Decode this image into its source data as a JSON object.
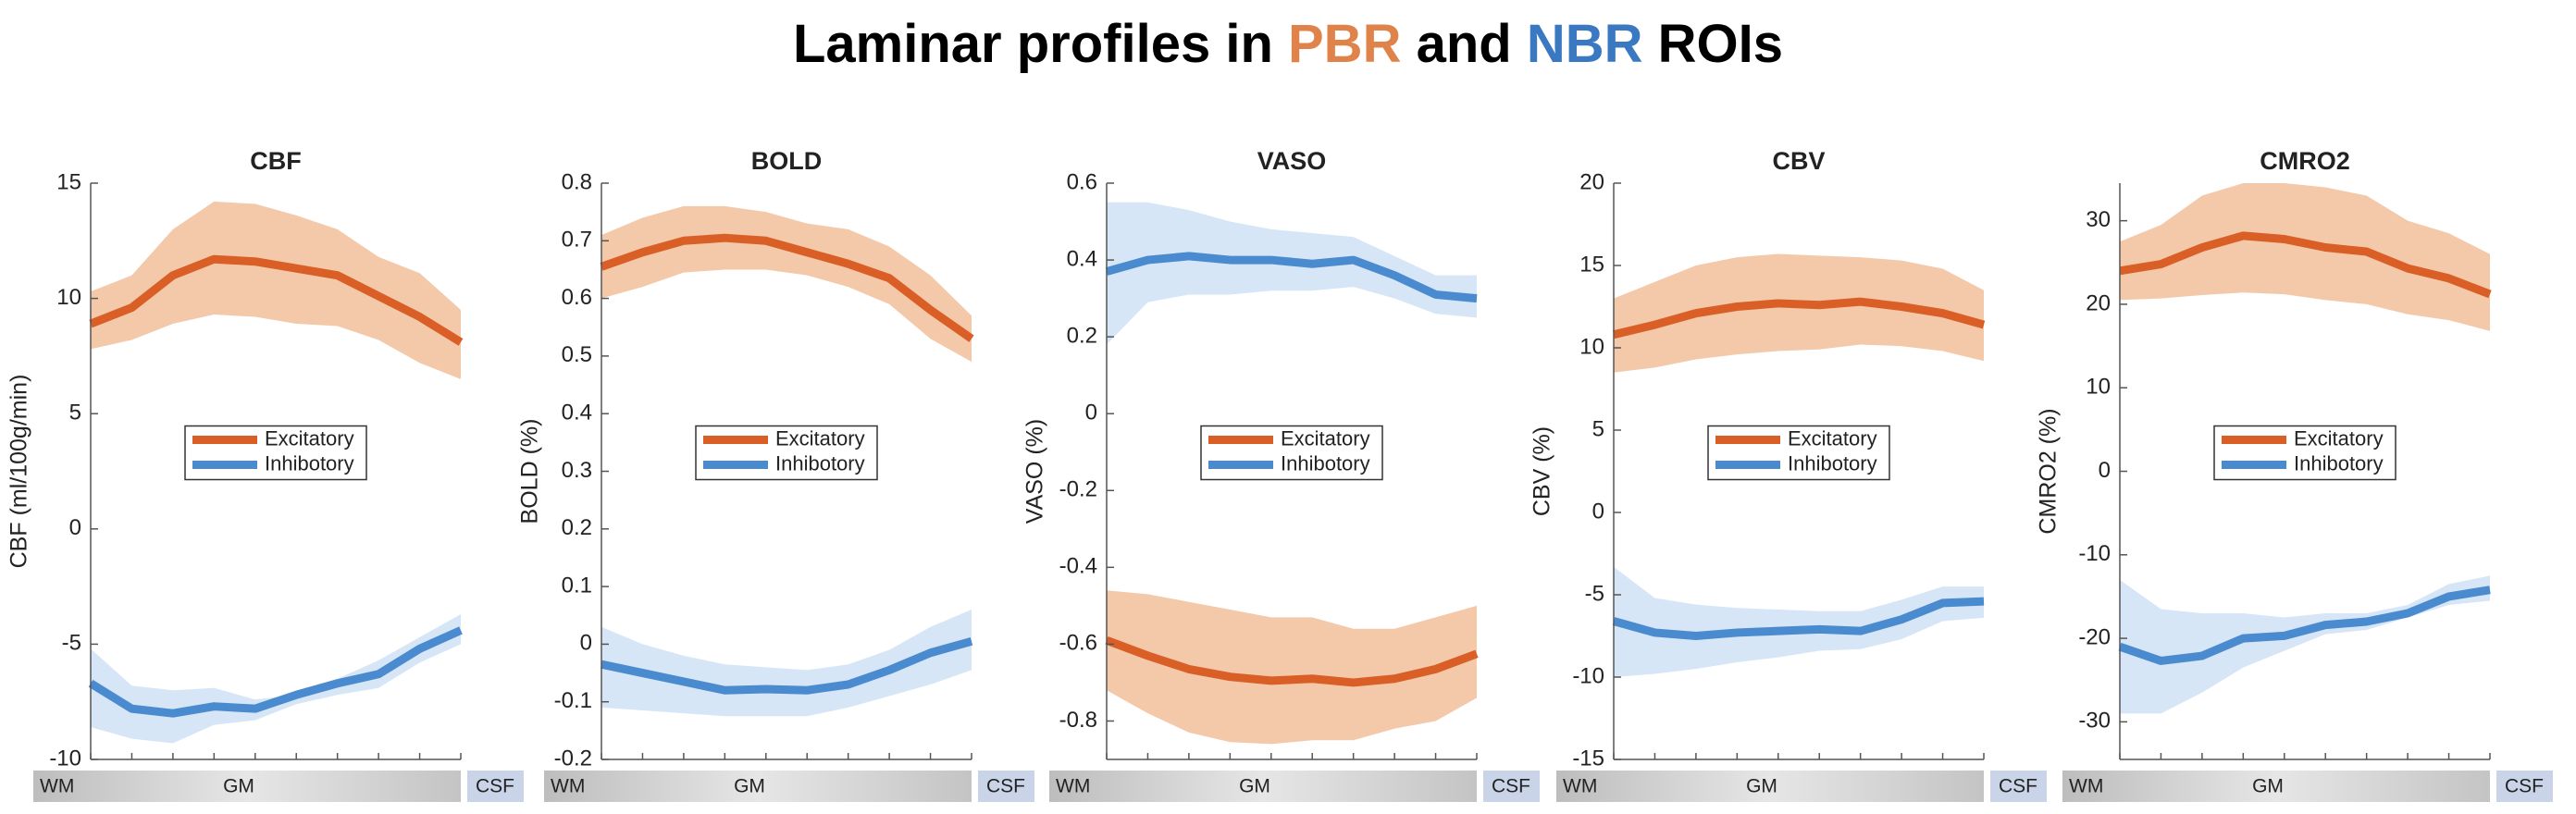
{
  "title": [
    "Laminar profiles in",
    "PBR",
    "and",
    "NBR",
    "ROIs"
  ],
  "title_colors": [
    null,
    "#e0834a",
    null,
    "#3a78c2",
    null
  ],
  "chart_data": [
    {
      "type": "line",
      "title": "CBF",
      "ylabel": "CBF (ml/100g/min)",
      "categories": [
        null,
        null,
        null,
        null,
        null,
        null,
        null,
        null,
        null,
        null
      ],
      "layers": [
        "WM",
        "GM",
        "CSF"
      ],
      "ylim": [
        -10,
        15
      ],
      "yticks": [
        -10,
        -5,
        0,
        5,
        10,
        15
      ],
      "legend": "center",
      "series": [
        {
          "name": "Excitatory",
          "color": "#d95f27",
          "band_color": "#f3c9aa",
          "values": [
            8.9,
            9.6,
            11.0,
            11.7,
            11.6,
            11.3,
            11.0,
            10.1,
            9.2,
            8.1
          ],
          "upper": [
            10.3,
            11.0,
            13.0,
            14.2,
            14.1,
            13.6,
            13.0,
            11.8,
            11.1,
            9.5
          ],
          "lower": [
            7.8,
            8.2,
            8.9,
            9.3,
            9.2,
            8.9,
            8.8,
            8.2,
            7.2,
            6.5
          ]
        },
        {
          "name": "Inhibotory",
          "color": "#4a8bd0",
          "band_color": "#d6e6f6",
          "values": [
            -6.7,
            -7.8,
            -8.0,
            -7.7,
            -7.8,
            -7.2,
            -6.7,
            -6.3,
            -5.2,
            -4.4
          ],
          "upper": [
            -5.2,
            -6.8,
            -7.0,
            -6.9,
            -7.4,
            -7.2,
            -6.5,
            -5.7,
            -4.7,
            -3.7
          ],
          "lower": [
            -8.6,
            -9.1,
            -9.3,
            -8.5,
            -8.3,
            -7.6,
            -7.2,
            -6.9,
            -5.8,
            -5.0
          ]
        }
      ]
    },
    {
      "type": "line",
      "title": "BOLD",
      "ylabel": "BOLD (%)",
      "categories": [
        null,
        null,
        null,
        null,
        null,
        null,
        null,
        null,
        null,
        null
      ],
      "layers": [
        "WM",
        "GM",
        "CSF"
      ],
      "ylim": [
        -0.2,
        0.8
      ],
      "yticks": [
        -0.2,
        -0.1,
        0,
        0.1,
        0.2,
        0.3,
        0.4,
        0.5,
        0.6,
        0.7,
        0.8
      ],
      "legend": "center",
      "series": [
        {
          "name": "Excitatory",
          "color": "#d95f27",
          "band_color": "#f3c9aa",
          "values": [
            0.655,
            0.68,
            0.7,
            0.705,
            0.7,
            0.68,
            0.66,
            0.635,
            0.58,
            0.53
          ],
          "upper": [
            0.71,
            0.74,
            0.76,
            0.76,
            0.75,
            0.73,
            0.72,
            0.69,
            0.64,
            0.57
          ],
          "lower": [
            0.6,
            0.62,
            0.645,
            0.65,
            0.65,
            0.64,
            0.62,
            0.59,
            0.53,
            0.49
          ]
        },
        {
          "name": "Inhibotory",
          "color": "#4a8bd0",
          "band_color": "#d6e6f6",
          "values": [
            -0.035,
            -0.05,
            -0.065,
            -0.08,
            -0.078,
            -0.08,
            -0.07,
            -0.045,
            -0.015,
            0.005
          ],
          "upper": [
            0.03,
            0.0,
            -0.02,
            -0.035,
            -0.04,
            -0.045,
            -0.035,
            -0.01,
            0.03,
            0.06
          ],
          "lower": [
            -0.11,
            -0.115,
            -0.12,
            -0.125,
            -0.125,
            -0.125,
            -0.11,
            -0.09,
            -0.07,
            -0.045
          ]
        }
      ]
    },
    {
      "type": "line",
      "title": "VASO",
      "ylabel": "VASO (%)",
      "categories": [
        null,
        null,
        null,
        null,
        null,
        null,
        null,
        null,
        null,
        null
      ],
      "layers": [
        "WM",
        "GM",
        "CSF"
      ],
      "ylim": [
        -0.9,
        0.6
      ],
      "yticks": [
        -0.8,
        -0.6,
        -0.4,
        -0.2,
        0,
        0.2,
        0.4,
        0.6
      ],
      "legend": "center",
      "series": [
        {
          "name": "Excitatory",
          "color": "#d95f27",
          "band_color": "#f3c9aa",
          "values": [
            -0.59,
            -0.63,
            -0.665,
            -0.685,
            -0.695,
            -0.69,
            -0.7,
            -0.69,
            -0.665,
            -0.625
          ],
          "upper": [
            -0.46,
            -0.47,
            -0.49,
            -0.51,
            -0.53,
            -0.53,
            -0.56,
            -0.56,
            -0.53,
            -0.5
          ],
          "lower": [
            -0.72,
            -0.78,
            -0.83,
            -0.855,
            -0.86,
            -0.85,
            -0.85,
            -0.82,
            -0.8,
            -0.74
          ]
        },
        {
          "name": "Inhibotory",
          "color": "#4a8bd0",
          "band_color": "#d6e6f6",
          "values": [
            0.37,
            0.4,
            0.41,
            0.4,
            0.4,
            0.39,
            0.4,
            0.36,
            0.31,
            0.3
          ],
          "upper": [
            0.55,
            0.55,
            0.53,
            0.5,
            0.48,
            0.47,
            0.46,
            0.41,
            0.36,
            0.36
          ],
          "lower": [
            0.18,
            0.29,
            0.31,
            0.31,
            0.32,
            0.32,
            0.33,
            0.3,
            0.26,
            0.25
          ]
        }
      ]
    },
    {
      "type": "line",
      "title": "CBV",
      "ylabel": "CBV (%)",
      "categories": [
        null,
        null,
        null,
        null,
        null,
        null,
        null,
        null,
        null,
        null
      ],
      "layers": [
        "WM",
        "GM",
        "CSF"
      ],
      "ylim": [
        -15,
        20
      ],
      "yticks": [
        -15,
        -10,
        -5,
        0,
        5,
        10,
        15,
        20
      ],
      "legend": "center",
      "series": [
        {
          "name": "Excitatory",
          "color": "#d95f27",
          "band_color": "#f3c9aa",
          "values": [
            10.8,
            11.4,
            12.1,
            12.5,
            12.7,
            12.6,
            12.8,
            12.5,
            12.1,
            11.4
          ],
          "upper": [
            13.0,
            14.0,
            15.0,
            15.5,
            15.7,
            15.6,
            15.5,
            15.3,
            14.8,
            13.5
          ],
          "lower": [
            8.5,
            8.8,
            9.3,
            9.6,
            9.8,
            9.9,
            10.2,
            10.1,
            9.8,
            9.2
          ]
        },
        {
          "name": "Inhibotory",
          "color": "#4a8bd0",
          "band_color": "#d6e6f6",
          "values": [
            -6.6,
            -7.3,
            -7.5,
            -7.3,
            -7.2,
            -7.1,
            -7.2,
            -6.5,
            -5.5,
            -5.4
          ],
          "upper": [
            -3.3,
            -5.2,
            -5.6,
            -5.8,
            -5.9,
            -6.0,
            -6.0,
            -5.3,
            -4.5,
            -4.5
          ],
          "lower": [
            -10.0,
            -9.8,
            -9.5,
            -9.1,
            -8.8,
            -8.4,
            -8.3,
            -7.7,
            -6.6,
            -6.4
          ]
        }
      ]
    },
    {
      "type": "line",
      "title": "CMRO2",
      "ylabel": "CMRO2 (%)",
      "categories": [
        null,
        null,
        null,
        null,
        null,
        null,
        null,
        null,
        null,
        null
      ],
      "layers": [
        "WM",
        "GM",
        "CSF"
      ],
      "ylim": [
        -34.5,
        34.5
      ],
      "yticks": [
        -30,
        -20,
        -10,
        0,
        10,
        20,
        30
      ],
      "legend": "center",
      "series": [
        {
          "name": "Excitatory",
          "color": "#d95f27",
          "band_color": "#f3c9aa",
          "values": [
            24.0,
            24.8,
            26.8,
            28.2,
            27.8,
            26.8,
            26.3,
            24.3,
            23.1,
            21.2
          ],
          "upper": [
            27.5,
            29.5,
            33.0,
            34.5,
            34.5,
            34.0,
            33.0,
            30.0,
            28.5,
            26.0
          ],
          "lower": [
            20.5,
            20.7,
            21.1,
            21.4,
            21.2,
            20.5,
            20.0,
            18.8,
            18.1,
            16.8
          ]
        },
        {
          "name": "Inhibotory",
          "color": "#4a8bd0",
          "band_color": "#d6e6f6",
          "values": [
            -21.0,
            -22.7,
            -22.1,
            -20.0,
            -19.7,
            -18.4,
            -18.0,
            -17.0,
            -15.0,
            -14.2
          ],
          "upper": [
            -13.0,
            -16.5,
            -17.0,
            -17.0,
            -17.5,
            -17.0,
            -17.0,
            -16.0,
            -13.5,
            -12.5
          ],
          "lower": [
            -29.0,
            -29.0,
            -26.5,
            -23.5,
            -21.5,
            -19.5,
            -19.0,
            -17.5,
            -16.0,
            -15.5
          ]
        }
      ]
    }
  ]
}
